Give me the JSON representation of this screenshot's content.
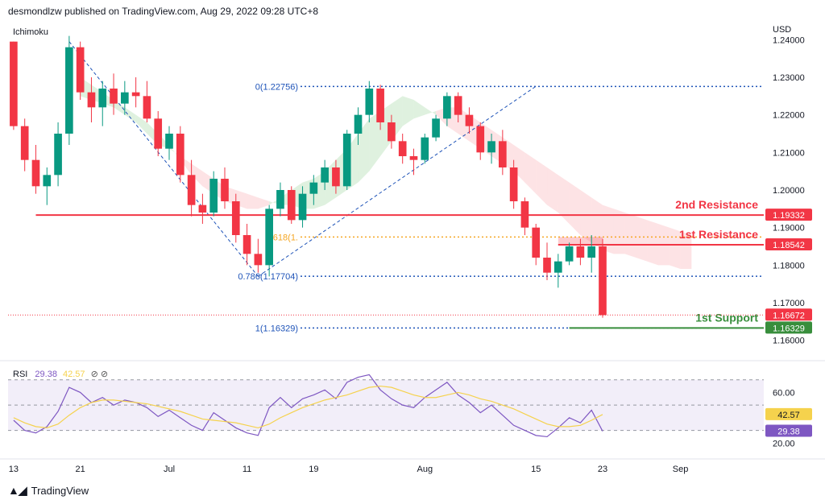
{
  "header": {
    "published": "desmondlzw published on TradingView.com, Aug 29, 2022 09:28 UTC+8"
  },
  "footer": {
    "brand": "TradingView",
    "logo_icon": "tradingview-logo-icon"
  },
  "chart_data": {
    "type": "candlestick",
    "currency": "USD",
    "indicator": "Ichimoku",
    "price_axis": {
      "min": 1.155,
      "max": 1.245,
      "ticks": [
        "1.24000",
        "1.23000",
        "1.22000",
        "1.21000",
        "1.20000",
        "1.19000",
        "1.18000",
        "1.17000",
        "1.16000"
      ]
    },
    "time_axis": {
      "ticks": [
        {
          "label": "13",
          "i": 0
        },
        {
          "label": "21",
          "i": 6
        },
        {
          "label": "Jul",
          "i": 14
        },
        {
          "label": "11",
          "i": 21
        },
        {
          "label": "19",
          "i": 27
        },
        {
          "label": "Aug",
          "i": 37
        },
        {
          "label": "15",
          "i": 47
        },
        {
          "label": "23",
          "i": 53
        },
        {
          "label": "Sep",
          "i": 60
        }
      ],
      "total_slots": 68
    },
    "candles": [
      [
        1.2395,
        1.2395,
        1.216,
        1.217
      ],
      [
        1.217,
        1.219,
        1.205,
        1.208
      ],
      [
        1.208,
        1.212,
        1.199,
        1.201
      ],
      [
        1.201,
        1.206,
        1.196,
        1.204
      ],
      [
        1.204,
        1.218,
        1.201,
        1.215
      ],
      [
        1.215,
        1.241,
        1.212,
        1.238
      ],
      [
        1.238,
        1.2395,
        1.224,
        1.226
      ],
      [
        1.226,
        1.23,
        1.218,
        1.222
      ],
      [
        1.222,
        1.229,
        1.217,
        1.227
      ],
      [
        1.227,
        1.231,
        1.22,
        1.223
      ],
      [
        1.223,
        1.229,
        1.22,
        1.226
      ],
      [
        1.226,
        1.23,
        1.222,
        1.225
      ],
      [
        1.225,
        1.229,
        1.218,
        1.219
      ],
      [
        1.219,
        1.221,
        1.209,
        1.211
      ],
      [
        1.211,
        1.217,
        1.208,
        1.215
      ],
      [
        1.215,
        1.217,
        1.202,
        1.204
      ],
      [
        1.204,
        1.208,
        1.193,
        1.196
      ],
      [
        1.196,
        1.199,
        1.191,
        1.194
      ],
      [
        1.194,
        1.205,
        1.193,
        1.203
      ],
      [
        1.203,
        1.206,
        1.195,
        1.197
      ],
      [
        1.197,
        1.199,
        1.186,
        1.188
      ],
      [
        1.188,
        1.191,
        1.18,
        1.183
      ],
      [
        1.183,
        1.187,
        1.178,
        1.18
      ],
      [
        1.18,
        1.196,
        1.177,
        1.195
      ],
      [
        1.195,
        1.202,
        1.193,
        1.2
      ],
      [
        1.2,
        1.201,
        1.191,
        1.192
      ],
      [
        1.192,
        1.201,
        1.19,
        1.199
      ],
      [
        1.199,
        1.204,
        1.196,
        1.202
      ],
      [
        1.202,
        1.208,
        1.2,
        1.206
      ],
      [
        1.206,
        1.208,
        1.199,
        1.201
      ],
      [
        1.201,
        1.216,
        1.2,
        1.215
      ],
      [
        1.215,
        1.222,
        1.212,
        1.22
      ],
      [
        1.22,
        1.229,
        1.218,
        1.227
      ],
      [
        1.227,
        1.228,
        1.216,
        1.218
      ],
      [
        1.218,
        1.22,
        1.211,
        1.213
      ],
      [
        1.213,
        1.215,
        1.207,
        1.209
      ],
      [
        1.209,
        1.211,
        1.204,
        1.208
      ],
      [
        1.208,
        1.215,
        1.207,
        1.214
      ],
      [
        1.214,
        1.22,
        1.213,
        1.219
      ],
      [
        1.219,
        1.226,
        1.217,
        1.225
      ],
      [
        1.225,
        1.226,
        1.218,
        1.22
      ],
      [
        1.22,
        1.222,
        1.215,
        1.217
      ],
      [
        1.217,
        1.218,
        1.208,
        1.21
      ],
      [
        1.21,
        1.215,
        1.207,
        1.213
      ],
      [
        1.213,
        1.216,
        1.204,
        1.206
      ],
      [
        1.206,
        1.208,
        1.195,
        1.197
      ],
      [
        1.197,
        1.198,
        1.188,
        1.19
      ],
      [
        1.19,
        1.191,
        1.18,
        1.182
      ],
      [
        1.182,
        1.186,
        1.176,
        1.178
      ],
      [
        1.178,
        1.183,
        1.174,
        1.181
      ],
      [
        1.181,
        1.186,
        1.18,
        1.185
      ],
      [
        1.185,
        1.187,
        1.18,
        1.182
      ],
      [
        1.182,
        1.188,
        1.178,
        1.185
      ],
      [
        1.185,
        1.187,
        1.166,
        1.1667
      ]
    ],
    "candle_slots": [
      0,
      1,
      2,
      3,
      4,
      5,
      6,
      7,
      8,
      9,
      10,
      11,
      12,
      13,
      14,
      15,
      16,
      17,
      18,
      19,
      20,
      21,
      22,
      23,
      24,
      25,
      26,
      27,
      28,
      29,
      30,
      31,
      32,
      33,
      34,
      35,
      36,
      37,
      38,
      39,
      40,
      41,
      42,
      43,
      44,
      45,
      46,
      47,
      48,
      49,
      50,
      51,
      52,
      53
    ],
    "cloud": {
      "span_a": [
        null,
        null,
        null,
        null,
        null,
        null,
        1.23,
        1.228,
        1.226,
        1.224,
        1.222,
        1.22,
        1.218,
        1.215,
        1.212,
        1.208,
        1.204,
        1.201,
        1.199,
        1.197,
        1.196,
        1.195,
        1.195,
        1.196,
        1.198,
        1.2,
        1.202,
        1.203,
        1.205,
        1.208,
        1.211,
        1.215,
        1.219,
        1.221,
        1.223,
        1.225,
        1.224,
        1.222,
        1.22,
        1.217,
        1.215,
        1.213,
        1.211,
        1.209,
        1.207,
        1.205,
        1.202,
        1.199,
        1.196,
        1.194,
        1.191,
        1.188,
        1.186,
        1.184,
        1.183,
        1.183,
        1.182,
        1.181,
        1.18,
        1.18,
        1.179,
        1.179
      ],
      "span_b": [
        null,
        null,
        null,
        null,
        null,
        null,
        1.225,
        1.224,
        1.223,
        1.222,
        1.22,
        1.218,
        1.215,
        1.212,
        1.211,
        1.209,
        1.207,
        1.205,
        1.203,
        1.201,
        1.2,
        1.199,
        1.198,
        1.197,
        1.196,
        1.196,
        1.195,
        1.195,
        1.196,
        1.198,
        1.2,
        1.202,
        1.205,
        1.209,
        1.213,
        1.217,
        1.219,
        1.22,
        1.221,
        1.222,
        1.222,
        1.22,
        1.218,
        1.216,
        1.214,
        1.212,
        1.21,
        1.208,
        1.206,
        1.204,
        1.202,
        1.2,
        1.198,
        1.196,
        1.195,
        1.194,
        1.193,
        1.192,
        1.191,
        1.19,
        1.189,
        1.188
      ]
    },
    "fibonacci": [
      {
        "label": "0(1.22756)",
        "value": 1.22756,
        "color": "#1e53b8"
      },
      {
        "label": "0.618(1.",
        "value": 1.1875,
        "color": "#f5a623"
      },
      {
        "label": "0.786(1.17704)",
        "value": 1.17704,
        "color": "#1e53b8"
      },
      {
        "label": "1(1.16329)",
        "value": 1.16329,
        "color": "#1e53b8"
      }
    ],
    "trend_lines": [
      {
        "from": [
          5,
          1.2395
        ],
        "to": [
          22,
          1.177
        ]
      },
      {
        "from": [
          22,
          1.177
        ],
        "to": [
          47,
          1.2276
        ]
      }
    ],
    "levels": [
      {
        "name": "2nd Resistance",
        "value": 1.19332,
        "price_label": "1.19332",
        "color": "#f23645",
        "from_i": 2
      },
      {
        "name": "1st Resistance",
        "value": 1.18542,
        "price_label": "1.18542",
        "color": "#f23645",
        "from_i": 49
      },
      {
        "name": "1st Support",
        "value": 1.16329,
        "price_label": "1.16329",
        "color": "#388e3c",
        "from_i": 50
      }
    ],
    "resistance_zone": {
      "from_i": 49,
      "to_i": 53,
      "top": 1.1875,
      "bottom": 1.18542
    },
    "last_price": {
      "value": 1.16672,
      "label": "1.16672"
    },
    "rsi": {
      "label": "RSI",
      "value_label": "29.38",
      "ma_label": "42.57",
      "value": 29.38,
      "ma": 42.57,
      "range": [
        10,
        80
      ],
      "ticks": [
        "60.00",
        "20.00"
      ],
      "levels": [
        70,
        50,
        30
      ],
      "series": [
        38,
        30,
        28,
        33,
        45,
        64,
        60,
        52,
        56,
        50,
        54,
        52,
        48,
        41,
        46,
        40,
        34,
        30,
        44,
        38,
        32,
        28,
        26,
        48,
        56,
        48,
        55,
        58,
        62,
        55,
        68,
        72,
        74,
        62,
        55,
        50,
        48,
        56,
        62,
        68,
        58,
        52,
        44,
        50,
        42,
        34,
        30,
        26,
        25,
        32,
        40,
        36,
        46,
        29.38
      ],
      "ma_series": [
        40,
        36,
        33,
        32,
        35,
        42,
        48,
        52,
        54,
        54,
        53,
        52,
        51,
        49,
        47,
        45,
        42,
        39,
        38,
        37,
        36,
        34,
        32,
        35,
        40,
        44,
        48,
        51,
        54,
        56,
        58,
        61,
        64,
        65,
        64,
        61,
        58,
        56,
        56,
        58,
        60,
        58,
        55,
        53,
        50,
        47,
        43,
        39,
        35,
        33,
        33,
        34,
        38,
        42.57
      ]
    }
  }
}
